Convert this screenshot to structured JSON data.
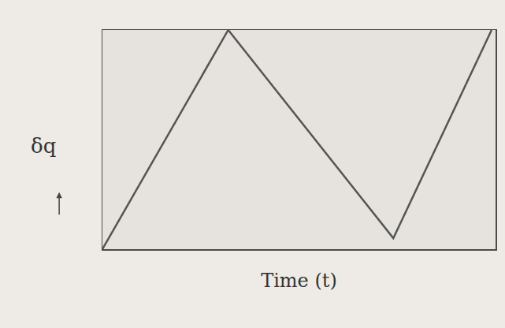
{
  "chart_data": {
    "type": "line",
    "x": [
      0,
      0.32,
      0.74,
      0.99
    ],
    "values": [
      0,
      1,
      0.05,
      1
    ],
    "xlim": [
      0,
      1
    ],
    "ylim": [
      0,
      1
    ],
    "x_label": "Time (t)",
    "y_label": "δq",
    "tick_labels": false,
    "grid": false,
    "color": "#555555"
  }
}
